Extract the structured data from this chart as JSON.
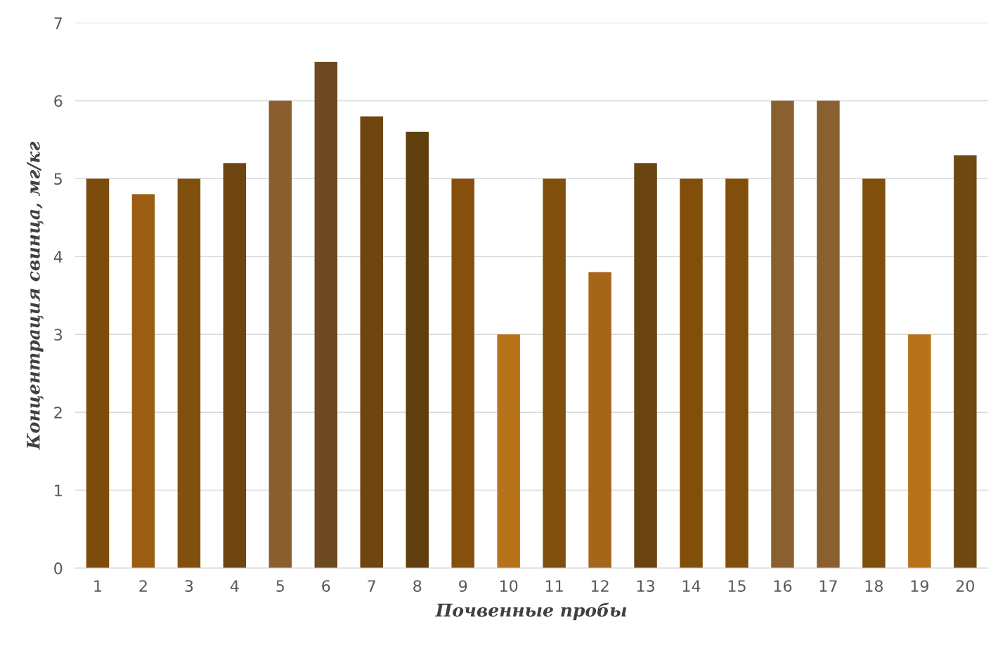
{
  "chart_data": {
    "type": "bar",
    "xlabel": "Почвенные пробы",
    "ylabel": "Концентрация свинца, мг/кг",
    "categories": [
      "1",
      "2",
      "3",
      "4",
      "5",
      "6",
      "7",
      "8",
      "9",
      "10",
      "11",
      "12",
      "13",
      "14",
      "15",
      "16",
      "17",
      "18",
      "19",
      "20"
    ],
    "values": [
      5,
      4.8,
      5,
      5.2,
      6,
      6.5,
      5.8,
      5.6,
      5,
      3,
      5,
      3.8,
      5.2,
      5,
      5,
      6,
      6,
      5,
      3,
      5.3
    ],
    "colors": [
      "#7d4b0c",
      "#9a5d12",
      "#82500e",
      "#6e4510",
      "#8a5e2e",
      "#6e4a22",
      "#6f4510",
      "#60400f",
      "#86500c",
      "#b8721a",
      "#80500d",
      "#a5661a",
      "#6a4411",
      "#824f0b",
      "#824f0b",
      "#8a6030",
      "#8a6030",
      "#7f4f0b",
      "#b8721a",
      "#6e4a12"
    ],
    "ylim": [
      0,
      7
    ],
    "yticks": [
      0,
      1,
      2,
      3,
      4,
      5,
      6,
      7
    ],
    "grid": "y"
  }
}
